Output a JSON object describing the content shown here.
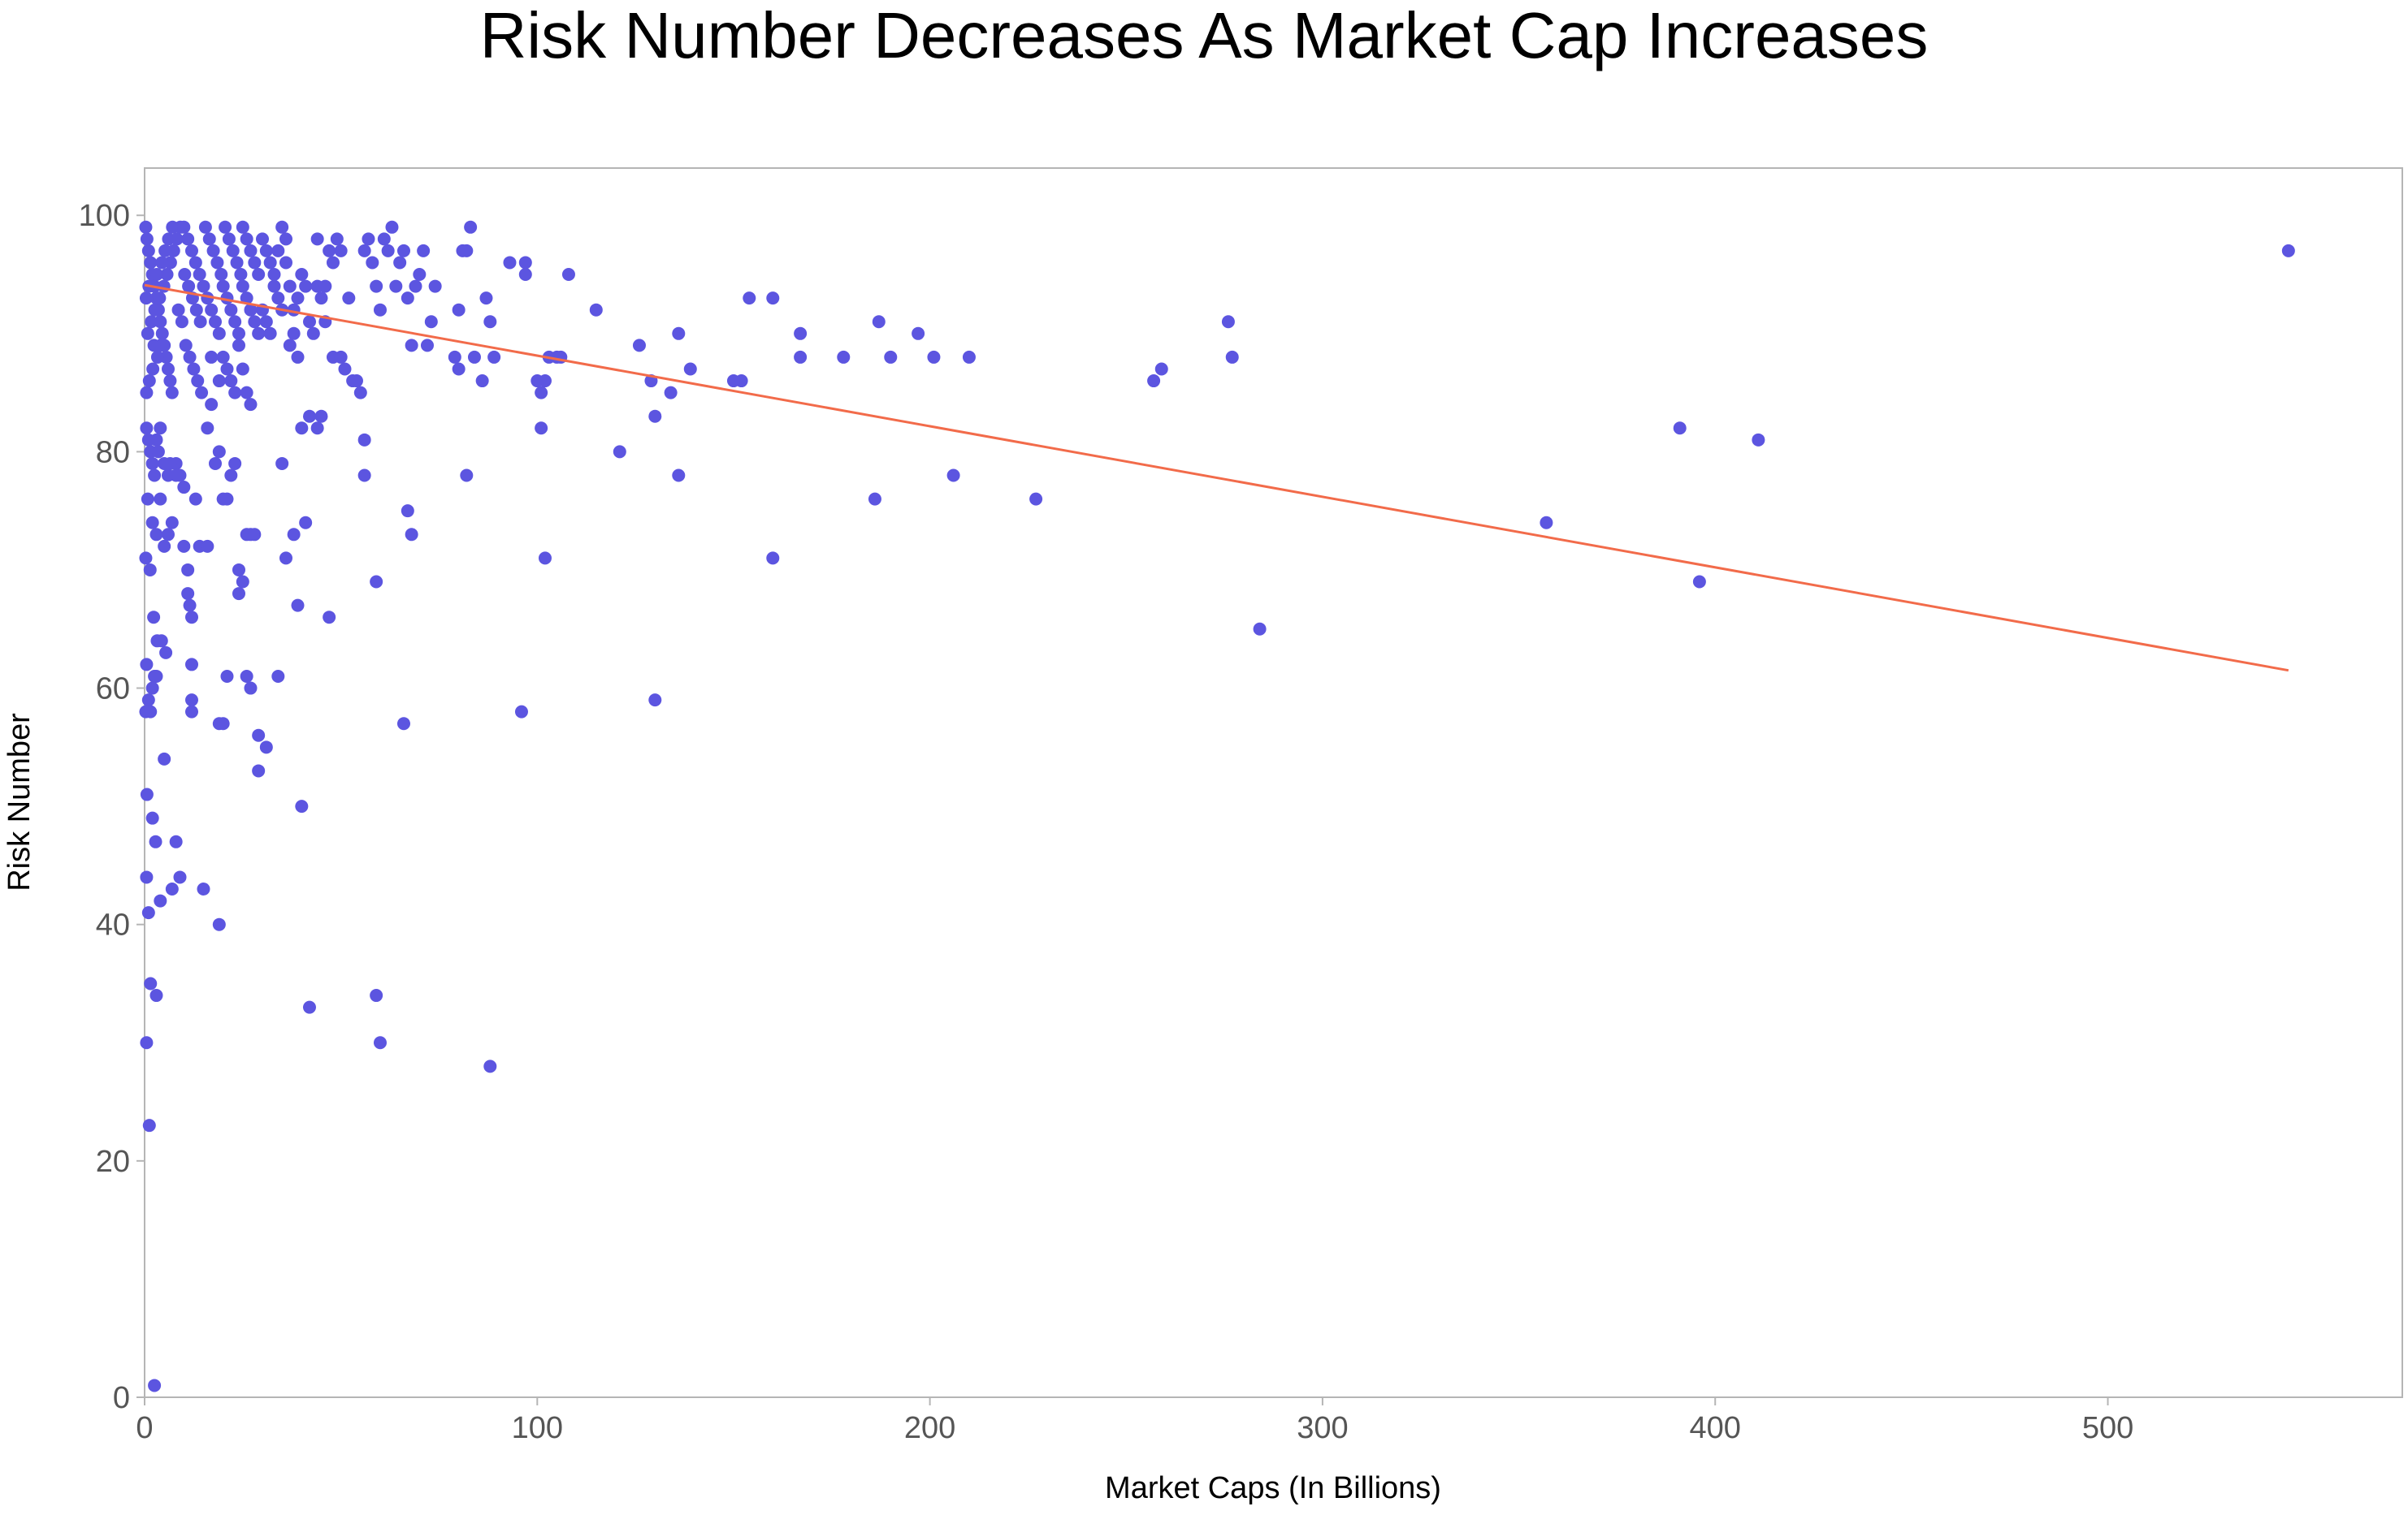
{
  "chart_data": {
    "type": "scatter",
    "title": "Risk Number Decreases As Market Cap Increases",
    "xlabel": "Market Caps (In Billions)",
    "ylabel": "Risk Number",
    "xlim": [
      0,
      575
    ],
    "ylim": [
      0,
      104
    ],
    "xticks": [
      0,
      100,
      200,
      300,
      400,
      500
    ],
    "yticks": [
      0,
      20,
      40,
      60,
      80,
      100
    ],
    "grid": false,
    "colors": {
      "points": "#5c55e0",
      "trend": "#f26b4a",
      "frame": "#b5b5b5"
    },
    "trendline": {
      "x": [
        0,
        546
      ],
      "y": [
        94.1,
        61.5
      ]
    },
    "series": [
      {
        "points": [
          [
            0.3,
            99
          ],
          [
            0.6,
            98
          ],
          [
            1,
            97
          ],
          [
            1.5,
            96
          ],
          [
            2,
            95
          ],
          [
            2.5,
            94
          ],
          [
            3,
            93
          ],
          [
            3.5,
            92
          ],
          [
            4,
            91
          ],
          [
            4.5,
            90
          ],
          [
            5,
            89
          ],
          [
            5.5,
            88
          ],
          [
            6,
            87
          ],
          [
            6.5,
            86
          ],
          [
            7,
            85
          ],
          [
            0.5,
            85
          ],
          [
            1.2,
            86
          ],
          [
            2.1,
            87
          ],
          [
            3.3,
            88
          ],
          [
            4.1,
            89
          ],
          [
            0.8,
            90
          ],
          [
            1.7,
            91
          ],
          [
            2.6,
            92
          ],
          [
            3.8,
            93
          ],
          [
            4.9,
            94
          ],
          [
            5.7,
            95
          ],
          [
            6.6,
            96
          ],
          [
            7.4,
            97
          ],
          [
            8.2,
            98
          ],
          [
            9.1,
            99
          ],
          [
            0.4,
            93
          ],
          [
            1.1,
            94
          ],
          [
            2.4,
            89
          ],
          [
            3.1,
            95
          ],
          [
            4.4,
            96
          ],
          [
            5.2,
            97
          ],
          [
            6.1,
            98
          ],
          [
            7.1,
            99
          ],
          [
            8.6,
            92
          ],
          [
            9.5,
            91
          ],
          [
            10,
            99
          ],
          [
            11,
            98
          ],
          [
            12,
            97
          ],
          [
            13,
            96
          ],
          [
            14,
            95
          ],
          [
            15,
            94
          ],
          [
            16,
            93
          ],
          [
            17,
            92
          ],
          [
            18,
            91
          ],
          [
            19,
            90
          ],
          [
            10.5,
            89
          ],
          [
            11.5,
            88
          ],
          [
            12.5,
            87
          ],
          [
            13.5,
            86
          ],
          [
            14.5,
            85
          ],
          [
            10.2,
            95
          ],
          [
            11.2,
            94
          ],
          [
            12.2,
            93
          ],
          [
            13.2,
            92
          ],
          [
            14.2,
            91
          ],
          [
            15.5,
            99
          ],
          [
            16.5,
            98
          ],
          [
            17.5,
            97
          ],
          [
            18.5,
            96
          ],
          [
            19.5,
            95
          ],
          [
            20,
            94
          ],
          [
            21,
            93
          ],
          [
            22,
            92
          ],
          [
            23,
            91
          ],
          [
            24,
            90
          ],
          [
            20.5,
            99
          ],
          [
            21.5,
            98
          ],
          [
            22.5,
            97
          ],
          [
            23.5,
            96
          ],
          [
            24.5,
            95
          ],
          [
            25,
            94
          ],
          [
            26,
            93
          ],
          [
            27,
            92
          ],
          [
            28,
            91
          ],
          [
            29,
            90
          ],
          [
            20,
            88
          ],
          [
            22,
            86
          ],
          [
            24,
            89
          ],
          [
            25,
            87
          ],
          [
            26,
            85
          ],
          [
            27,
            84
          ],
          [
            23,
            85
          ],
          [
            21,
            87
          ],
          [
            19,
            86
          ],
          [
            17,
            88
          ],
          [
            25,
            99
          ],
          [
            26,
            98
          ],
          [
            27,
            97
          ],
          [
            28,
            96
          ],
          [
            29,
            95
          ],
          [
            30,
            98
          ],
          [
            31,
            97
          ],
          [
            32,
            96
          ],
          [
            33,
            95
          ],
          [
            34,
            97
          ],
          [
            30,
            92
          ],
          [
            31,
            91
          ],
          [
            32,
            90
          ],
          [
            33,
            94
          ],
          [
            34,
            93
          ],
          [
            35,
            99
          ],
          [
            36,
            98
          ],
          [
            37,
            94
          ],
          [
            38,
            92
          ],
          [
            39,
            93
          ],
          [
            35,
            92
          ],
          [
            36,
            96
          ],
          [
            37,
            89
          ],
          [
            38,
            90
          ],
          [
            39,
            88
          ],
          [
            40,
            95
          ],
          [
            41,
            94
          ],
          [
            42,
            91
          ],
          [
            43,
            90
          ],
          [
            44,
            94
          ],
          [
            45,
            93
          ],
          [
            46,
            91
          ],
          [
            47,
            97
          ],
          [
            48,
            96
          ],
          [
            49,
            98
          ],
          [
            50,
            97
          ],
          [
            52,
            93
          ],
          [
            53,
            86
          ],
          [
            54,
            86
          ],
          [
            55,
            85
          ],
          [
            44,
            98
          ],
          [
            46,
            94
          ],
          [
            48,
            88
          ],
          [
            50,
            88
          ],
          [
            51,
            87
          ],
          [
            56,
            97
          ],
          [
            57,
            98
          ],
          [
            58,
            96
          ],
          [
            59,
            94
          ],
          [
            60,
            92
          ],
          [
            61,
            98
          ],
          [
            62,
            97
          ],
          [
            63,
            99
          ],
          [
            64,
            94
          ],
          [
            65,
            96
          ],
          [
            66,
            97
          ],
          [
            67,
            93
          ],
          [
            68,
            89
          ],
          [
            69,
            94
          ],
          [
            70,
            95
          ],
          [
            71,
            97
          ],
          [
            72,
            89
          ],
          [
            73,
            91
          ],
          [
            74,
            94
          ],
          [
            79,
            88
          ],
          [
            80,
            92
          ],
          [
            81,
            97
          ],
          [
            82,
            97
          ],
          [
            83,
            99
          ],
          [
            84,
            88
          ],
          [
            80,
            87
          ],
          [
            86,
            86
          ],
          [
            87,
            93
          ],
          [
            88,
            91
          ],
          [
            89,
            88
          ],
          [
            93,
            96
          ],
          [
            97,
            96
          ],
          [
            97,
            95
          ],
          [
            100,
            86
          ],
          [
            101,
            85
          ],
          [
            102,
            86
          ],
          [
            103,
            88
          ],
          [
            105,
            88
          ],
          [
            106,
            88
          ],
          [
            108,
            95
          ],
          [
            115,
            92
          ],
          [
            126,
            89
          ],
          [
            129,
            86
          ],
          [
            134,
            85
          ],
          [
            136,
            90
          ],
          [
            139,
            87
          ],
          [
            150,
            86
          ],
          [
            152,
            86
          ],
          [
            154,
            93
          ],
          [
            160,
            93
          ],
          [
            167,
            90
          ],
          [
            167,
            88
          ],
          [
            178,
            88
          ],
          [
            187,
            91
          ],
          [
            190,
            88
          ],
          [
            197,
            90
          ],
          [
            201,
            88
          ],
          [
            210,
            88
          ],
          [
            257,
            86
          ],
          [
            259,
            87
          ],
          [
            276,
            91
          ],
          [
            277,
            88
          ],
          [
            0.5,
            82
          ],
          [
            1,
            81
          ],
          [
            1.5,
            80
          ],
          [
            2,
            79
          ],
          [
            2.5,
            78
          ],
          [
            3,
            81
          ],
          [
            3.5,
            80
          ],
          [
            4,
            82
          ],
          [
            5,
            79
          ],
          [
            6,
            78
          ],
          [
            0.8,
            76
          ],
          [
            2,
            74
          ],
          [
            3,
            73
          ],
          [
            4,
            76
          ],
          [
            5,
            72
          ],
          [
            6,
            73
          ],
          [
            7,
            74
          ],
          [
            8,
            79
          ],
          [
            9,
            78
          ],
          [
            10,
            77
          ],
          [
            0.3,
            71
          ],
          [
            1.4,
            70
          ],
          [
            2.3,
            66
          ],
          [
            3.2,
            64
          ],
          [
            4.3,
            64
          ],
          [
            5.4,
            63
          ],
          [
            6.5,
            79
          ],
          [
            8,
            78
          ],
          [
            10,
            72
          ],
          [
            11,
            70
          ],
          [
            11,
            68
          ],
          [
            11.5,
            67
          ],
          [
            12,
            66
          ],
          [
            13,
            76
          ],
          [
            14,
            72
          ],
          [
            16,
            72
          ],
          [
            16,
            82
          ],
          [
            17,
            84
          ],
          [
            18,
            79
          ],
          [
            19,
            80
          ],
          [
            20,
            76
          ],
          [
            21,
            76
          ],
          [
            22,
            78
          ],
          [
            23,
            79
          ],
          [
            24,
            68
          ],
          [
            24,
            70
          ],
          [
            25,
            69
          ],
          [
            26,
            73
          ],
          [
            27,
            73
          ],
          [
            28,
            73
          ],
          [
            35,
            79
          ],
          [
            36,
            71
          ],
          [
            38,
            73
          ],
          [
            39,
            67
          ],
          [
            40,
            82
          ],
          [
            41,
            74
          ],
          [
            42,
            83
          ],
          [
            44,
            82
          ],
          [
            45,
            83
          ],
          [
            47,
            66
          ],
          [
            56,
            81
          ],
          [
            56,
            78
          ],
          [
            59,
            69
          ],
          [
            67,
            75
          ],
          [
            68,
            73
          ],
          [
            82,
            78
          ],
          [
            101,
            82
          ],
          [
            102,
            71
          ],
          [
            121,
            80
          ],
          [
            130,
            83
          ],
          [
            136,
            78
          ],
          [
            160,
            71
          ],
          [
            186,
            76
          ],
          [
            206,
            78
          ],
          [
            227,
            76
          ],
          [
            284,
            65
          ],
          [
            357,
            74
          ],
          [
            391,
            82
          ],
          [
            396,
            69
          ],
          [
            411,
            81
          ],
          [
            0.5,
            62
          ],
          [
            1,
            59
          ],
          [
            1.5,
            58
          ],
          [
            2,
            60
          ],
          [
            2.5,
            61
          ],
          [
            3,
            61
          ],
          [
            0.6,
            51
          ],
          [
            2,
            49
          ],
          [
            2.8,
            47
          ],
          [
            4,
            42
          ],
          [
            5,
            54
          ],
          [
            7,
            43
          ],
          [
            8,
            47
          ],
          [
            9,
            44
          ],
          [
            12,
            62
          ],
          [
            12,
            59
          ],
          [
            12,
            58
          ],
          [
            15,
            43
          ],
          [
            19,
            57
          ],
          [
            20,
            57
          ],
          [
            21,
            61
          ],
          [
            26,
            61
          ],
          [
            27,
            60
          ],
          [
            29,
            56
          ],
          [
            29,
            53
          ],
          [
            31,
            55
          ],
          [
            34,
            61
          ],
          [
            40,
            50
          ],
          [
            42,
            33
          ],
          [
            59,
            34
          ],
          [
            60,
            30
          ],
          [
            66,
            57
          ],
          [
            88,
            28
          ],
          [
            96,
            58
          ],
          [
            130,
            59
          ],
          [
            0.5,
            44
          ],
          [
            1,
            41
          ],
          [
            1.5,
            35
          ],
          [
            0.5,
            30
          ],
          [
            1.2,
            23
          ],
          [
            3,
            34
          ],
          [
            2.5,
            1
          ],
          [
            19,
            40
          ],
          [
            0.3,
            58
          ],
          [
            546,
            97
          ]
        ]
      }
    ]
  }
}
